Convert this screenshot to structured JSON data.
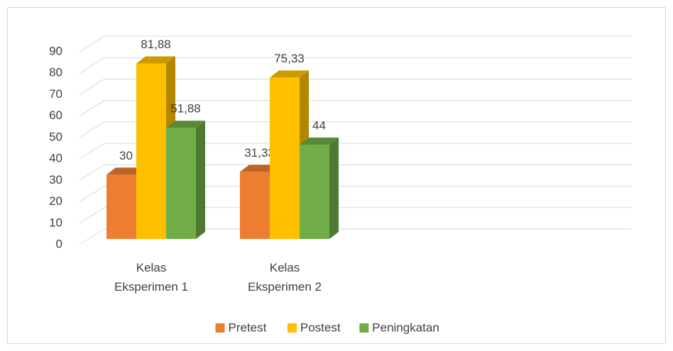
{
  "chart_data": {
    "type": "bar3d",
    "categories": [
      "Kelas Eksperimen 1",
      "Kelas Eksperimen 2"
    ],
    "series": [
      {
        "name": "Pretest",
        "color": "#ed7d31",
        "values": [
          30,
          31.33
        ],
        "value_labels": [
          "30",
          "31,33"
        ]
      },
      {
        "name": "Postest",
        "color": "#ffc000",
        "values": [
          81.88,
          75.33
        ],
        "value_labels": [
          "81,88",
          "75,33"
        ]
      },
      {
        "name": "Peningkatan",
        "color": "#70ad47",
        "values": [
          51.88,
          44
        ],
        "value_labels": [
          "51,88",
          "44"
        ]
      }
    ],
    "ylim": [
      0,
      90
    ],
    "yticks": [
      0,
      10,
      20,
      30,
      40,
      50,
      60,
      70,
      80,
      90
    ],
    "grid": true,
    "legend": "bottom"
  }
}
